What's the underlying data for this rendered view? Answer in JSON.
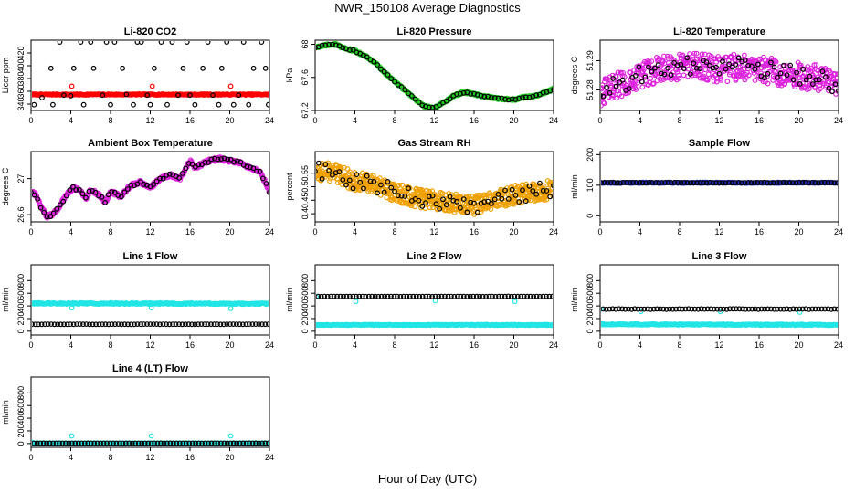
{
  "page_title": "NWR_150108  Average Diagnostics",
  "x_axis_title": "Hour of Day (UTC)",
  "chart_data": [
    {
      "type": "scatter",
      "title": "Li-820 CO2",
      "ylabel": "Licor ppm",
      "xlim": [
        0,
        24
      ],
      "ylim": [
        330,
        440
      ],
      "xticks": [
        0,
        4,
        8,
        12,
        16,
        20,
        24
      ],
      "yticks": [
        340,
        360,
        380,
        400,
        420
      ],
      "series": [
        {
          "color": "#ff0000",
          "style": "dense",
          "x": [
            0.1,
            23.9
          ],
          "y": [
            355,
            355
          ],
          "n": 260,
          "jitter": 0.8
        },
        {
          "color": "#ff0000",
          "style": "points",
          "x": [
            4.1,
            12.2,
            20.1
          ],
          "y": [
            368,
            368,
            368
          ]
        },
        {
          "color": "#000000",
          "style": "points",
          "x": [
            0.3,
            1.1,
            2.0,
            2.2,
            2.9,
            3.3,
            4.0,
            4.3,
            5.0,
            5.3,
            6.0,
            6.3,
            7.2,
            7.6,
            8.0,
            8.4,
            9.2,
            9.6,
            10.3,
            10.7,
            11.1,
            11.7,
            12.0,
            12.4,
            13.1,
            13.7,
            14.2,
            14.8,
            15.3,
            15.7,
            16.0,
            16.5,
            17.3,
            17.8,
            18.3,
            18.9,
            19.2,
            19.7,
            20.4,
            20.9,
            21.4,
            21.9,
            22.4,
            23.2,
            23.6,
            23.9
          ],
          "y": [
            339,
            350,
            396,
            339,
            437,
            354,
            353,
            396,
            437,
            339,
            437,
            396,
            354,
            437,
            339,
            437,
            396,
            355,
            339,
            437,
            437,
            354,
            339,
            396,
            437,
            339,
            437,
            354,
            396,
            437,
            354,
            339,
            396,
            437,
            354,
            339,
            396,
            437,
            339,
            354,
            437,
            339,
            396,
            437,
            396,
            339
          ]
        }
      ]
    },
    {
      "type": "scatter",
      "title": "Li-820 Pressure",
      "ylabel": "kPa",
      "xlim": [
        0,
        24
      ],
      "ylim": [
        67.2,
        68.05
      ],
      "xticks": [
        0,
        4,
        8,
        12,
        16,
        20,
        24
      ],
      "yticks": [
        67.2,
        67.6,
        68.0
      ],
      "series": [
        {
          "color": "#22cc22",
          "style": "curve",
          "n": 420,
          "spread": 0.012,
          "x": [
            0,
            1,
            2,
            3,
            4,
            5,
            6,
            7,
            8,
            9,
            10,
            11,
            12,
            13,
            14,
            15,
            16,
            17,
            18,
            19,
            20,
            21,
            22,
            23,
            24
          ],
          "y": [
            67.96,
            67.99,
            68.0,
            67.95,
            67.92,
            67.86,
            67.78,
            67.66,
            67.55,
            67.45,
            67.34,
            67.25,
            67.23,
            67.3,
            67.38,
            67.42,
            67.4,
            67.37,
            67.35,
            67.34,
            67.33,
            67.36,
            67.37,
            67.41,
            67.46
          ]
        },
        {
          "color": "#000000",
          "style": "curve",
          "n": 70,
          "spread": 0.008,
          "x": [
            0,
            1,
            2,
            3,
            4,
            5,
            6,
            7,
            8,
            9,
            10,
            11,
            12,
            13,
            14,
            15,
            16,
            17,
            18,
            19,
            20,
            21,
            22,
            23,
            24
          ],
          "y": [
            67.96,
            67.99,
            68.0,
            67.95,
            67.92,
            67.86,
            67.78,
            67.66,
            67.55,
            67.45,
            67.34,
            67.25,
            67.23,
            67.3,
            67.38,
            67.42,
            67.4,
            67.37,
            67.35,
            67.34,
            67.33,
            67.36,
            67.37,
            67.41,
            67.46
          ]
        }
      ]
    },
    {
      "type": "scatter",
      "title": "Li-820 Temperature",
      "ylabel": "degrees C",
      "xlim": [
        0,
        24
      ],
      "ylim": [
        51.273,
        51.297
      ],
      "xticks": [
        0,
        4,
        8,
        12,
        16,
        20,
        24
      ],
      "yticks": [
        51.28,
        51.29
      ],
      "series": [
        {
          "color": "#dd22dd",
          "style": "curve",
          "n": 520,
          "spread": 0.0045,
          "x": [
            0,
            2,
            4,
            6,
            8,
            10,
            12,
            14,
            16,
            18,
            20,
            22,
            24
          ],
          "y": [
            51.279,
            51.282,
            51.285,
            51.287,
            51.288,
            51.288,
            51.287,
            51.288,
            51.287,
            51.286,
            51.285,
            51.284,
            51.281
          ]
        },
        {
          "color": "#000000",
          "style": "curve",
          "n": 75,
          "spread": 0.003,
          "x": [
            0,
            2,
            4,
            6,
            8,
            10,
            12,
            14,
            16,
            18,
            20,
            22,
            24
          ],
          "y": [
            51.279,
            51.282,
            51.285,
            51.287,
            51.288,
            51.288,
            51.287,
            51.288,
            51.287,
            51.286,
            51.285,
            51.284,
            51.281
          ]
        }
      ]
    },
    {
      "type": "scatter",
      "title": "Ambient Box Temperature",
      "ylabel": "degrees C",
      "xlim": [
        0,
        24
      ],
      "ylim": [
        26.52,
        27.3
      ],
      "xticks": [
        0,
        4,
        8,
        12,
        16,
        20,
        24
      ],
      "yticks": [
        26.6,
        27.0
      ],
      "series": [
        {
          "color": "#dd22dd",
          "style": "curve",
          "n": 460,
          "spread": 0.02,
          "x": [
            0,
            0.5,
            1,
            1.6,
            2.2,
            3,
            3.6,
            4.2,
            5,
            5.5,
            6,
            7,
            7.5,
            8,
            9,
            10,
            11,
            12,
            13,
            14,
            15,
            16,
            16.5,
            17,
            18,
            19,
            20,
            21,
            22,
            23,
            23.5,
            24
          ],
          "y": [
            26.85,
            26.82,
            26.68,
            26.58,
            26.6,
            26.72,
            26.82,
            26.9,
            26.86,
            26.78,
            26.88,
            26.8,
            26.74,
            26.86,
            26.8,
            26.92,
            26.96,
            26.9,
            27.0,
            27.04,
            27.0,
            27.2,
            27.12,
            27.15,
            27.2,
            27.22,
            27.2,
            27.18,
            27.12,
            27.08,
            26.98,
            26.86
          ]
        },
        {
          "color": "#000000",
          "style": "curve",
          "n": 75,
          "spread": 0.015,
          "x": [
            0,
            0.5,
            1,
            1.6,
            2.2,
            3,
            3.6,
            4.2,
            5,
            5.5,
            6,
            7,
            7.5,
            8,
            9,
            10,
            11,
            12,
            13,
            14,
            15,
            16,
            16.5,
            17,
            18,
            19,
            20,
            21,
            22,
            23,
            23.5,
            24
          ],
          "y": [
            26.85,
            26.82,
            26.68,
            26.58,
            26.6,
            26.72,
            26.82,
            26.9,
            26.86,
            26.78,
            26.88,
            26.8,
            26.74,
            26.86,
            26.8,
            26.92,
            26.96,
            26.9,
            27.0,
            27.04,
            27.0,
            27.2,
            27.12,
            27.15,
            27.2,
            27.22,
            27.2,
            27.18,
            27.12,
            27.08,
            26.98,
            26.86
          ]
        }
      ]
    },
    {
      "type": "scatter",
      "title": "Gas Stream RH",
      "ylabel": "percent",
      "xlim": [
        0,
        24
      ],
      "ylim": [
        0.37,
        0.63
      ],
      "xticks": [
        0,
        4,
        8,
        12,
        16,
        20,
        24
      ],
      "yticks": [
        0.4,
        0.45,
        0.5,
        0.55
      ],
      "series": [
        {
          "color": "#f0a000",
          "style": "curve",
          "n": 620,
          "spread": 0.035,
          "x": [
            0,
            2,
            4,
            6,
            8,
            10,
            12,
            14,
            16,
            18,
            20,
            22,
            24
          ],
          "y": [
            0.56,
            0.55,
            0.52,
            0.51,
            0.48,
            0.46,
            0.45,
            0.44,
            0.43,
            0.45,
            0.47,
            0.48,
            0.49
          ]
        },
        {
          "color": "#000000",
          "style": "curve",
          "n": 70,
          "spread": 0.03,
          "x": [
            0,
            2,
            4,
            6,
            8,
            10,
            12,
            14,
            16,
            18,
            20,
            22,
            24
          ],
          "y": [
            0.56,
            0.55,
            0.52,
            0.51,
            0.48,
            0.46,
            0.45,
            0.44,
            0.43,
            0.45,
            0.47,
            0.48,
            0.49
          ]
        }
      ]
    },
    {
      "type": "scatter",
      "title": "Sample Flow",
      "ylabel": "ml/min",
      "xlim": [
        0,
        24
      ],
      "ylim": [
        -20,
        210
      ],
      "xticks": [
        0,
        4,
        8,
        12,
        16,
        20,
        24
      ],
      "yticks": [
        0,
        100,
        200
      ],
      "series": [
        {
          "color": "#2233cc",
          "style": "dense",
          "x": [
            0.1,
            23.9
          ],
          "y": [
            108,
            108
          ],
          "n": 260,
          "jitter": 1.5
        },
        {
          "color": "#000000",
          "style": "dense",
          "x": [
            0.1,
            23.9
          ],
          "y": [
            108,
            108
          ],
          "n": 75,
          "jitter": 1.0
        }
      ]
    },
    {
      "type": "scatter",
      "title": "Line 1 Flow",
      "ylabel": "ml/min",
      "xlim": [
        0,
        24
      ],
      "ylim": [
        -60,
        1050
      ],
      "xticks": [
        0,
        4,
        8,
        12,
        16,
        20,
        24
      ],
      "yticks": [
        0,
        200,
        400,
        600,
        800
      ],
      "series": [
        {
          "color": "#22e5e5",
          "style": "dense",
          "x": [
            0.1,
            23.9
          ],
          "y": [
            440,
            435
          ],
          "n": 300,
          "jitter": 10
        },
        {
          "color": "#22e5e5",
          "style": "points",
          "x": [
            4.1,
            12.1,
            20.1
          ],
          "y": [
            370,
            370,
            360
          ]
        },
        {
          "color": "#000000",
          "style": "dense",
          "x": [
            0.1,
            23.9
          ],
          "y": [
            110,
            110
          ],
          "n": 75,
          "jitter": 2
        }
      ]
    },
    {
      "type": "scatter",
      "title": "Line 2 Flow",
      "ylabel": "ml/min",
      "xlim": [
        0,
        24
      ],
      "ylim": [
        -60,
        1050
      ],
      "xticks": [
        0,
        4,
        8,
        12,
        16,
        20,
        24
      ],
      "yticks": [
        0,
        200,
        400,
        600,
        800
      ],
      "series": [
        {
          "color": "#22e5e5",
          "style": "dense",
          "x": [
            0.1,
            23.9
          ],
          "y": [
            100,
            100
          ],
          "n": 300,
          "jitter": 6
        },
        {
          "color": "#22e5e5",
          "style": "points",
          "x": [
            0.1,
            4.1,
            12.1,
            20.1
          ],
          "y": [
            545,
            470,
            480,
            470
          ]
        },
        {
          "color": "#000000",
          "style": "dense",
          "x": [
            0.3,
            23.9
          ],
          "y": [
            550,
            550
          ],
          "n": 75,
          "jitter": 2
        }
      ]
    },
    {
      "type": "scatter",
      "title": "Line 3 Flow",
      "ylabel": "ml/min",
      "xlim": [
        0,
        24
      ],
      "ylim": [
        -60,
        1050
      ],
      "xticks": [
        0,
        4,
        8,
        12,
        16,
        20,
        24
      ],
      "yticks": [
        0,
        200,
        400,
        600,
        800
      ],
      "series": [
        {
          "color": "#22e5e5",
          "style": "dense",
          "x": [
            0.1,
            23.9
          ],
          "y": [
            110,
            100
          ],
          "n": 300,
          "jitter": 8
        },
        {
          "color": "#22e5e5",
          "style": "points",
          "x": [
            0.1,
            4.1,
            12.1,
            20.1
          ],
          "y": [
            350,
            310,
            310,
            300
          ]
        },
        {
          "color": "#000000",
          "style": "dense",
          "x": [
            0.3,
            23.9
          ],
          "y": [
            350,
            350
          ],
          "n": 75,
          "jitter": 4
        }
      ]
    },
    {
      "type": "scatter",
      "title": "Line 4 (LT) Flow",
      "ylabel": "ml/min",
      "xlim": [
        0,
        24
      ],
      "ylim": [
        -60,
        1050
      ],
      "xticks": [
        0,
        4,
        8,
        12,
        16,
        20,
        24
      ],
      "yticks": [
        0,
        200,
        400,
        600,
        800
      ],
      "series": [
        {
          "color": "#22e5e5",
          "style": "dense",
          "x": [
            0.1,
            23.9
          ],
          "y": [
            5,
            5
          ],
          "n": 260,
          "jitter": 2
        },
        {
          "color": "#22e5e5",
          "style": "points",
          "x": [
            0.1,
            4.1,
            12.1,
            20.1
          ],
          "y": [
            20,
            120,
            120,
            120
          ]
        },
        {
          "color": "#000000",
          "style": "dense",
          "x": [
            0.3,
            23.9
          ],
          "y": [
            5,
            5
          ],
          "n": 75,
          "jitter": 1
        }
      ]
    }
  ]
}
